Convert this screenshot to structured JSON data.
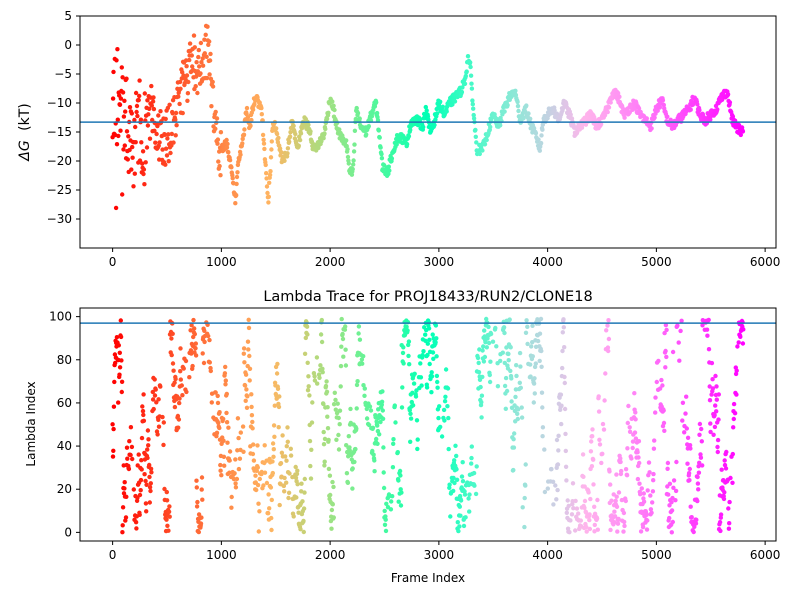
{
  "chart_data": [
    {
      "type": "scatter",
      "title": "",
      "xlabel": "",
      "ylabel": "ΔG (kT)",
      "ylabel_symbol": "ΔG",
      "ylabel_unit": "(kT)",
      "xlim": [
        -300,
        6100
      ],
      "ylim": [
        -35,
        5
      ],
      "xticks": [
        0,
        1000,
        2000,
        3000,
        4000,
        5000,
        6000
      ],
      "yticks": [
        5,
        0,
        -5,
        -10,
        -15,
        -20,
        -25,
        -30
      ],
      "hline": -13.3,
      "hline_color": "#1f77b4",
      "colormap": "rainbow",
      "n_frames": 5800,
      "trace_anchors": [
        [
          0,
          -8
        ],
        [
          60,
          -10
        ],
        [
          120,
          -14
        ],
        [
          180,
          -18
        ],
        [
          240,
          -12
        ],
        [
          300,
          -16
        ],
        [
          360,
          -11
        ],
        [
          420,
          -15
        ],
        [
          480,
          -17
        ],
        [
          540,
          -14
        ],
        [
          600,
          -9
        ],
        [
          650,
          -7
        ],
        [
          700,
          -5
        ],
        [
          750,
          -3
        ],
        [
          800,
          -4
        ],
        [
          850,
          -2
        ],
        [
          880,
          0
        ],
        [
          920,
          -10
        ],
        [
          960,
          -16
        ],
        [
          1000,
          -18
        ],
        [
          1050,
          -17
        ],
        [
          1100,
          -22
        ],
        [
          1130,
          -27
        ],
        [
          1150,
          -21
        ],
        [
          1200,
          -16
        ],
        [
          1230,
          -11
        ],
        [
          1260,
          -14
        ],
        [
          1300,
          -10
        ],
        [
          1330,
          -9.5
        ],
        [
          1370,
          -11
        ],
        [
          1400,
          -19
        ],
        [
          1430,
          -27
        ],
        [
          1450,
          -22
        ],
        [
          1470,
          -14
        ],
        [
          1500,
          -14
        ],
        [
          1530,
          -17
        ],
        [
          1560,
          -20
        ],
        [
          1600,
          -19
        ],
        [
          1650,
          -13
        ],
        [
          1700,
          -18
        ],
        [
          1750,
          -13
        ],
        [
          1800,
          -14
        ],
        [
          1850,
          -18
        ],
        [
          1900,
          -17
        ],
        [
          1950,
          -15
        ],
        [
          2000,
          -9
        ],
        [
          2030,
          -11
        ],
        [
          2060,
          -14
        ],
        [
          2100,
          -16
        ],
        [
          2150,
          -17
        ],
        [
          2180,
          -22
        ],
        [
          2210,
          -22
        ],
        [
          2240,
          -11
        ],
        [
          2280,
          -14
        ],
        [
          2330,
          -15
        ],
        [
          2380,
          -12
        ],
        [
          2420,
          -10
        ],
        [
          2450,
          -15
        ],
        [
          2480,
          -21
        ],
        [
          2530,
          -22
        ],
        [
          2580,
          -18
        ],
        [
          2620,
          -16
        ],
        [
          2660,
          -16
        ],
        [
          2700,
          -17
        ],
        [
          2750,
          -13
        ],
        [
          2800,
          -13
        ],
        [
          2850,
          -14
        ],
        [
          2880,
          -11
        ],
        [
          2920,
          -15
        ],
        [
          2960,
          -13
        ],
        [
          3000,
          -10
        ],
        [
          3050,
          -12
        ],
        [
          3100,
          -10
        ],
        [
          3150,
          -9
        ],
        [
          3200,
          -8
        ],
        [
          3240,
          -6
        ],
        [
          3270,
          -2
        ],
        [
          3290,
          -4
        ],
        [
          3320,
          -12
        ],
        [
          3350,
          -18
        ],
        [
          3400,
          -18
        ],
        [
          3450,
          -15
        ],
        [
          3500,
          -12
        ],
        [
          3550,
          -14
        ],
        [
          3600,
          -11
        ],
        [
          3650,
          -9
        ],
        [
          3700,
          -8
        ],
        [
          3750,
          -13
        ],
        [
          3800,
          -11
        ],
        [
          3850,
          -14
        ],
        [
          3900,
          -16
        ],
        [
          3930,
          -18
        ],
        [
          3960,
          -13
        ],
        [
          4000,
          -12
        ],
        [
          4050,
          -11
        ],
        [
          4100,
          -13
        ],
        [
          4150,
          -10
        ],
        [
          4200,
          -12
        ],
        [
          4250,
          -15
        ],
        [
          4300,
          -14
        ],
        [
          4350,
          -13
        ],
        [
          4400,
          -12
        ],
        [
          4450,
          -14
        ],
        [
          4500,
          -13
        ],
        [
          4550,
          -11
        ],
        [
          4600,
          -8
        ],
        [
          4650,
          -9
        ],
        [
          4700,
          -12
        ],
        [
          4750,
          -11
        ],
        [
          4800,
          -10
        ],
        [
          4850,
          -12
        ],
        [
          4900,
          -13
        ],
        [
          4950,
          -14
        ],
        [
          5000,
          -11
        ],
        [
          5050,
          -9.5
        ],
        [
          5100,
          -13
        ],
        [
          5150,
          -14
        ],
        [
          5200,
          -13
        ],
        [
          5250,
          -12
        ],
        [
          5300,
          -11
        ],
        [
          5350,
          -9
        ],
        [
          5400,
          -12
        ],
        [
          5450,
          -13
        ],
        [
          5500,
          -12
        ],
        [
          5550,
          -11
        ],
        [
          5600,
          -9
        ],
        [
          5650,
          -8
        ],
        [
          5700,
          -13
        ],
        [
          5750,
          -14.5
        ],
        [
          5800,
          -15
        ]
      ]
    },
    {
      "type": "scatter",
      "title": "Lambda Trace for PROJ18433/RUN2/CLONE18",
      "xlabel": "Frame Index",
      "ylabel": "Lambda Index",
      "xlim": [
        -300,
        6100
      ],
      "ylim": [
        -4,
        104
      ],
      "xticks": [
        0,
        1000,
        2000,
        3000,
        4000,
        5000,
        6000
      ],
      "yticks": [
        100,
        80,
        60,
        40,
        20,
        0
      ],
      "hline": 97,
      "hline_color": "#1f77b4",
      "colormap": "rainbow",
      "n_frames": 5800,
      "value_range": [
        0,
        99
      ]
    }
  ]
}
